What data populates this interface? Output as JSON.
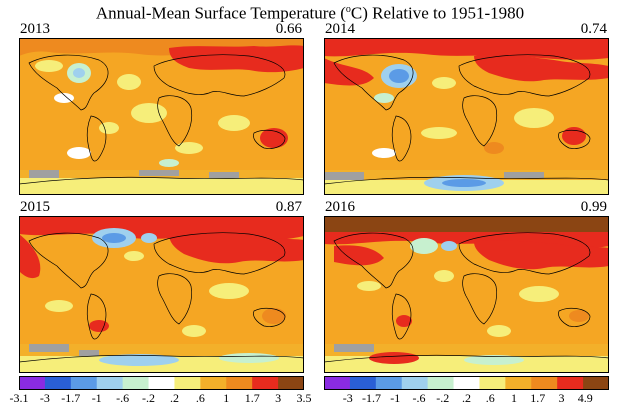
{
  "title": {
    "prefix": "Annual-Mean Surface Temperature (",
    "sup": "o",
    "suffix": "C) Relative to 1951-1980"
  },
  "panels": [
    {
      "year": "2013",
      "anomaly": "0.66"
    },
    {
      "year": "2014",
      "anomaly": "0.74"
    },
    {
      "year": "2015",
      "anomaly": "0.87"
    },
    {
      "year": "2016",
      "anomaly": "0.99"
    }
  ],
  "palette": {
    "colors": [
      "#8a2be2",
      "#2a5fd6",
      "#5b9be6",
      "#9fd0ee",
      "#c7f0cf",
      "#ffffff",
      "#f6ee7a",
      "#f3b02a",
      "#ee8a1f",
      "#e72b1e",
      "#8b4513"
    ],
    "ocean": "#f5a623",
    "land": "#f2b24a",
    "noData": "#a0a0a0"
  },
  "colorbars": [
    {
      "labels": [
        "-3.1",
        "-3",
        "-1.7",
        "-1",
        "-.6",
        "-.2",
        ".2",
        ".6",
        "1",
        "1.7",
        "3",
        "3.5"
      ]
    },
    {
      "labels": [
        "-3",
        "-1.7",
        "-1",
        "-.6",
        "-.2",
        ".2",
        ".6",
        "1",
        "1.7",
        "3",
        "4.9"
      ]
    }
  ]
}
